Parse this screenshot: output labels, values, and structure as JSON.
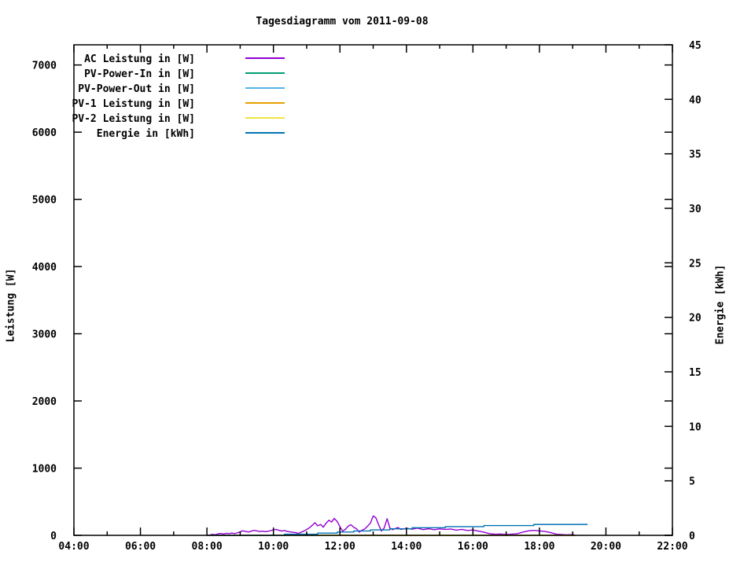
{
  "title": "Tagesdiagramm vom 2011-09-08",
  "axes": {
    "x": {
      "range_hours": [
        4,
        22
      ],
      "major_tick_every_hours": 2,
      "minor_tick_every_hours": 1,
      "major_ticks": [
        {
          "v": 4,
          "label": "04:00"
        },
        {
          "v": 6,
          "label": "06:00"
        },
        {
          "v": 8,
          "label": "08:00"
        },
        {
          "v": 10,
          "label": "10:00"
        },
        {
          "v": 12,
          "label": "12:00"
        },
        {
          "v": 14,
          "label": "14:00"
        },
        {
          "v": 16,
          "label": "16:00"
        },
        {
          "v": 18,
          "label": "18:00"
        },
        {
          "v": 20,
          "label": "20:00"
        },
        {
          "v": 22,
          "label": "22:00"
        }
      ]
    },
    "y_left": {
      "label": "Leistung [W]",
      "range": [
        0,
        7300
      ],
      "ticks": [
        {
          "v": 0,
          "label": "0"
        },
        {
          "v": 1000,
          "label": "1000"
        },
        {
          "v": 2000,
          "label": "2000"
        },
        {
          "v": 3000,
          "label": "3000"
        },
        {
          "v": 4000,
          "label": "4000"
        },
        {
          "v": 5000,
          "label": "5000"
        },
        {
          "v": 6000,
          "label": "6000"
        },
        {
          "v": 7000,
          "label": "7000"
        }
      ]
    },
    "y_right": {
      "label": "Energie [kWh]",
      "range": [
        0,
        45
      ],
      "ticks": [
        {
          "v": 0,
          "label": "0"
        },
        {
          "v": 5,
          "label": "5"
        },
        {
          "v": 10,
          "label": "10"
        },
        {
          "v": 15,
          "label": "15"
        },
        {
          "v": 20,
          "label": "20"
        },
        {
          "v": 25,
          "label": "25"
        },
        {
          "v": 30,
          "label": "30"
        },
        {
          "v": 35,
          "label": "35"
        },
        {
          "v": 40,
          "label": "40"
        },
        {
          "v": 45,
          "label": "45"
        }
      ]
    }
  },
  "legend": {
    "entries": [
      {
        "label": "AC Leistung in [W]",
        "color": "#9400d3"
      },
      {
        "label": "PV-Power-In in [W]",
        "color": "#009e73"
      },
      {
        "label": "PV-Power-Out in [W]",
        "color": "#56b4e9"
      },
      {
        "label": "PV-1 Leistung in [W]",
        "color": "#e69f00"
      },
      {
        "label": "PV-2 Leistung in [W]",
        "color": "#f0e442"
      },
      {
        "label": "Energie in [kWh]",
        "color": "#0072b2"
      }
    ]
  },
  "chart_data": {
    "type": "line",
    "title": "Tagesdiagramm vom 2011-09-08",
    "x_unit": "time of day (decimal hours)",
    "x_range": [
      4,
      22
    ],
    "y_left_label": "Leistung [W]",
    "y_left_range": [
      0,
      7300
    ],
    "y_right_label": "Energie [kWh]",
    "y_right_range": [
      0,
      45
    ],
    "grid": false,
    "legend_position": "top-left-inside",
    "series": [
      {
        "name": "AC Leistung in [W]",
        "color": "#9400d3",
        "axis": "left",
        "style": "line",
        "points": [
          [
            8.0,
            0
          ],
          [
            8.08,
            5
          ],
          [
            8.17,
            15
          ],
          [
            8.25,
            10
          ],
          [
            8.33,
            22
          ],
          [
            8.42,
            28
          ],
          [
            8.5,
            20
          ],
          [
            8.58,
            30
          ],
          [
            8.67,
            26
          ],
          [
            8.75,
            34
          ],
          [
            8.83,
            25
          ],
          [
            8.92,
            38
          ],
          [
            9.0,
            52
          ],
          [
            9.08,
            68
          ],
          [
            9.17,
            58
          ],
          [
            9.25,
            50
          ],
          [
            9.33,
            62
          ],
          [
            9.42,
            74
          ],
          [
            9.5,
            66
          ],
          [
            9.58,
            58
          ],
          [
            9.67,
            62
          ],
          [
            9.75,
            55
          ],
          [
            9.83,
            60
          ],
          [
            9.92,
            70
          ],
          [
            10.0,
            82
          ],
          [
            10.08,
            88
          ],
          [
            10.17,
            74
          ],
          [
            10.25,
            64
          ],
          [
            10.33,
            72
          ],
          [
            10.42,
            58
          ],
          [
            10.5,
            52
          ],
          [
            10.58,
            46
          ],
          [
            10.67,
            40
          ],
          [
            10.75,
            28
          ],
          [
            10.83,
            45
          ],
          [
            10.92,
            65
          ],
          [
            11.0,
            88
          ],
          [
            11.08,
            112
          ],
          [
            11.17,
            150
          ],
          [
            11.25,
            188
          ],
          [
            11.33,
            142
          ],
          [
            11.42,
            162
          ],
          [
            11.5,
            122
          ],
          [
            11.58,
            178
          ],
          [
            11.67,
            225
          ],
          [
            11.75,
            198
          ],
          [
            11.83,
            252
          ],
          [
            11.92,
            205
          ],
          [
            12.0,
            128
          ],
          [
            12.08,
            62
          ],
          [
            12.17,
            92
          ],
          [
            12.25,
            138
          ],
          [
            12.33,
            158
          ],
          [
            12.42,
            118
          ],
          [
            12.5,
            98
          ],
          [
            12.58,
            48
          ],
          [
            12.67,
            78
          ],
          [
            12.75,
            96
          ],
          [
            12.83,
            135
          ],
          [
            12.92,
            185
          ],
          [
            13.0,
            288
          ],
          [
            13.08,
            262
          ],
          [
            13.17,
            150
          ],
          [
            13.25,
            64
          ],
          [
            13.33,
            108
          ],
          [
            13.42,
            248
          ],
          [
            13.5,
            112
          ],
          [
            13.58,
            84
          ],
          [
            13.67,
            102
          ],
          [
            13.75,
            116
          ],
          [
            13.83,
            88
          ],
          [
            13.92,
            96
          ],
          [
            14.0,
            106
          ],
          [
            14.17,
            92
          ],
          [
            14.33,
            108
          ],
          [
            14.5,
            86
          ],
          [
            14.67,
            98
          ],
          [
            14.83,
            84
          ],
          [
            15.0,
            96
          ],
          [
            15.17,
            88
          ],
          [
            15.33,
            94
          ],
          [
            15.5,
            78
          ],
          [
            15.67,
            88
          ],
          [
            15.83,
            72
          ],
          [
            16.0,
            80
          ],
          [
            16.17,
            62
          ],
          [
            16.33,
            48
          ],
          [
            16.5,
            24
          ],
          [
            16.67,
            16
          ],
          [
            16.83,
            20
          ],
          [
            17.0,
            12
          ],
          [
            17.17,
            18
          ],
          [
            17.33,
            24
          ],
          [
            17.5,
            48
          ],
          [
            17.67,
            66
          ],
          [
            17.83,
            74
          ],
          [
            18.0,
            66
          ],
          [
            18.17,
            58
          ],
          [
            18.33,
            42
          ],
          [
            18.5,
            18
          ],
          [
            18.67,
            12
          ],
          [
            18.83,
            8
          ],
          [
            19.0,
            12
          ],
          [
            19.08,
            0
          ]
        ]
      },
      {
        "name": "PV-Power-In in [W]",
        "color": "#009e73",
        "axis": "left",
        "style": "line",
        "note": "flat at ~0 W all day, hidden under the x-axis border",
        "points": [
          [
            8.0,
            0
          ],
          [
            19.1,
            0
          ]
        ]
      },
      {
        "name": "PV-Power-Out in [W]",
        "color": "#56b4e9",
        "axis": "left",
        "style": "line",
        "note": "flat at ~0 W all day, hidden under the x-axis border",
        "points": [
          [
            8.0,
            0
          ],
          [
            19.1,
            0
          ]
        ]
      },
      {
        "name": "PV-1 Leistung in [W]",
        "color": "#e69f00",
        "axis": "left",
        "style": "line",
        "note": "flat at ~0 W all day, hidden under the x-axis border",
        "points": [
          [
            8.0,
            0
          ],
          [
            19.1,
            0
          ]
        ]
      },
      {
        "name": "PV-2 Leistung in [W]",
        "color": "#f0e442",
        "axis": "left",
        "style": "line",
        "note": "flat at ~0 W all day, hidden under the x-axis border",
        "points": [
          [
            8.0,
            0
          ],
          [
            19.1,
            0
          ]
        ]
      },
      {
        "name": "Energie in [kWh]",
        "color": "#0072b2",
        "axis": "right",
        "style": "step",
        "points": [
          [
            8.0,
            0
          ],
          [
            10.33,
            0.1
          ],
          [
            11.33,
            0.2
          ],
          [
            11.92,
            0.3
          ],
          [
            12.42,
            0.4
          ],
          [
            12.92,
            0.5
          ],
          [
            13.5,
            0.6
          ],
          [
            14.17,
            0.7
          ],
          [
            15.17,
            0.8
          ],
          [
            16.33,
            0.9
          ],
          [
            17.83,
            1.0
          ],
          [
            19.45,
            1.0
          ]
        ]
      }
    ]
  }
}
